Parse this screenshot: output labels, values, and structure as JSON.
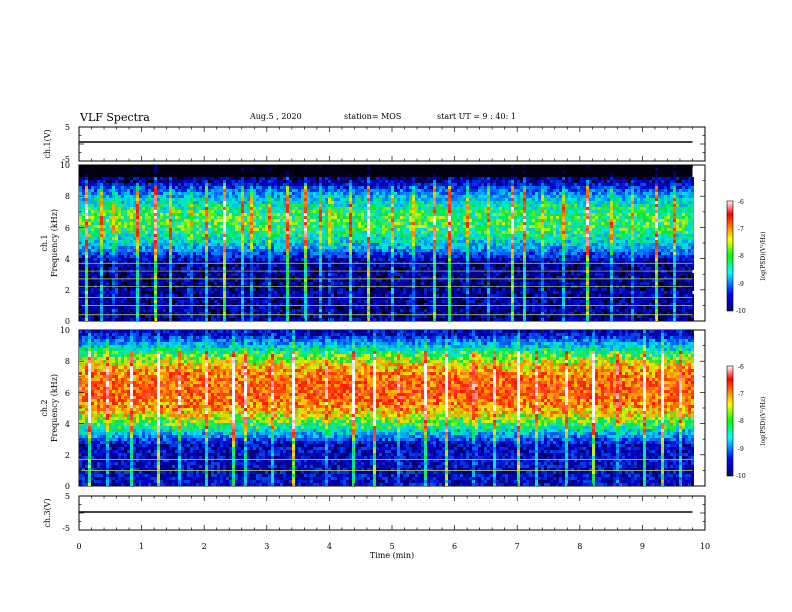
{
  "header": {
    "title": "VLF Spectra",
    "date": "Aug.5 , 2020",
    "station": "station= MOS",
    "start_time": "start UT = 9 : 40: 1"
  },
  "panels": {
    "ch1_voltage": {
      "ylabel": "ch.1(V)",
      "ticks": [
        "5",
        "-5"
      ]
    },
    "ch1_spectrogram": {
      "ylabel_a": "ch.1",
      "ylabel_b": "Frequency (kHz)",
      "ticks": [
        "0",
        "2",
        "4",
        "6",
        "8",
        "10"
      ]
    },
    "ch2_spectrogram": {
      "ylabel_a": "ch.2",
      "ylabel_b": "Frequency (kHz)",
      "ticks": [
        "0",
        "2",
        "4",
        "6",
        "8",
        "10"
      ]
    },
    "ch3_voltage": {
      "ylabel": "ch.3(V)",
      "ticks": [
        "5",
        "-5"
      ]
    }
  },
  "colorbar": {
    "label": "log(PSD)(V²/Hz)",
    "ticks": [
      "-6",
      "-7",
      "-8",
      "-9",
      "-10"
    ],
    "colors": [
      "#ffffff",
      "#ff0000",
      "#ffff00",
      "#00ff00",
      "#00ffff",
      "#0000ff",
      "#000080"
    ]
  },
  "x_axis": {
    "label": "Time (min)",
    "ticks": [
      "0",
      "1",
      "2",
      "3",
      "4",
      "5",
      "6",
      "7",
      "8",
      "9",
      "10"
    ]
  },
  "chart_data": {
    "type": "heatmap",
    "title": "VLF Spectra",
    "xlabel": "Time (min)",
    "xlim": [
      0,
      10
    ],
    "data_end_min": 9.8,
    "panels": [
      {
        "name": "ch.1(V)",
        "type": "line",
        "ylim": [
          -5,
          5
        ],
        "values": [
          0,
          0
        ]
      },
      {
        "name": "ch.1",
        "ylabel": "Frequency (kHz)",
        "ylim": [
          0,
          10
        ],
        "colorbar_range": [
          -10,
          -6
        ],
        "colorbar_label": "log(PSD)(V²/Hz)",
        "description_levels": {
          "band_center_khz": 6.5,
          "band_half_width_khz": 1.6,
          "band_level": -7.9,
          "background_level": -9.6
        },
        "vertical_bursts_min": [
          0.1,
          0.35,
          0.55,
          0.9,
          1.2,
          1.45,
          1.75,
          2.0,
          2.3,
          2.6,
          2.75,
          3.0,
          3.3,
          3.6,
          3.85,
          4.0,
          4.3,
          4.6,
          5.0,
          5.3,
          5.65,
          5.9,
          6.2,
          6.5,
          6.9,
          7.1,
          7.4,
          7.7,
          8.1,
          8.5,
          8.8,
          9.2,
          9.5
        ],
        "horizontal_lines_khz": [
          0.4,
          1.0,
          1.5,
          2.2,
          2.7,
          3.2,
          3.7
        ]
      },
      {
        "name": "ch.2",
        "ylabel": "Frequency (kHz)",
        "ylim": [
          0,
          10
        ],
        "colorbar_range": [
          -10,
          -6
        ],
        "colorbar_label": "log(PSD)(V²/Hz)",
        "description_levels": {
          "band_center_khz": 6.3,
          "band_half_width_khz": 2.2,
          "band_level": -6.9,
          "background_level": -9.4
        },
        "vertical_bursts_min": [
          0.15,
          0.45,
          0.8,
          1.25,
          1.6,
          2.0,
          2.45,
          2.65,
          3.05,
          3.4,
          3.95,
          4.35,
          4.7,
          5.1,
          5.5,
          5.85,
          6.3,
          6.6,
          7.0,
          7.3,
          7.75,
          8.2,
          8.6,
          9.0,
          9.3,
          9.6
        ],
        "horizontal_lines_khz": [
          1.0,
          1.7
        ]
      },
      {
        "name": "ch.3(V)",
        "type": "line",
        "ylim": [
          -5,
          5
        ],
        "values": [
          0,
          0
        ]
      }
    ]
  }
}
